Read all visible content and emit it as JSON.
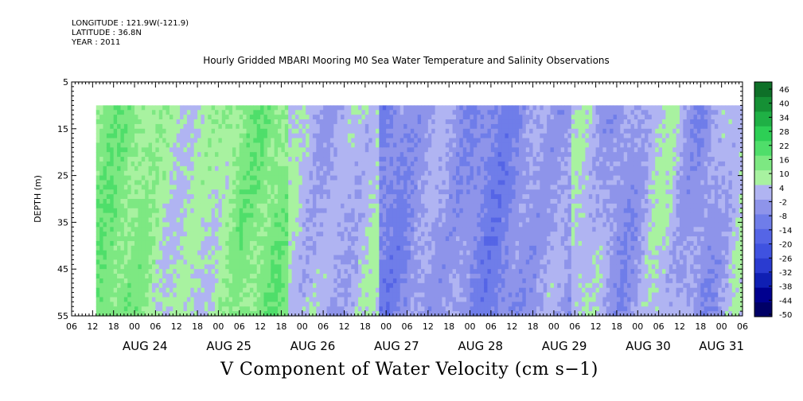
{
  "header": {
    "longitude": "LONGITUDE : 121.9W(-121.9)",
    "latitude": "LATITUDE : 36.8N",
    "year": "YEAR : 2011"
  },
  "title": "Hourly Gridded MBARI Mooring M0 Sea Water Temperature and Salinity Observations",
  "bottom_title": "V Component of Water Velocity (cm s−1)",
  "chart_data": {
    "type": "heatmap",
    "title": "Hourly Gridded MBARI Mooring M0 Sea Water Temperature and Salinity Observations",
    "ylabel": "DEPTH (m)",
    "xlabel": "",
    "ylim": [
      55,
      5
    ],
    "y_ticks": [
      "5",
      "15",
      "25",
      "35",
      "45",
      "55"
    ],
    "x_range_hours": [
      "AUG 23 06",
      "AUG 31 08"
    ],
    "x_hour_ticks": [
      "06",
      "12",
      "18",
      "00",
      "06",
      "12",
      "18",
      "00",
      "06",
      "12",
      "18",
      "00",
      "06",
      "12",
      "18",
      "00",
      "06",
      "12",
      "18",
      "00",
      "06",
      "12",
      "18",
      "00",
      "06",
      "12",
      "18",
      "00",
      "06",
      "12",
      "18",
      "00",
      "06"
    ],
    "x_day_labels": [
      "AUG 24",
      "AUG 25",
      "AUG 26",
      "AUG 27",
      "AUG 28",
      "AUG 29",
      "AUG 30",
      "AUG 31"
    ],
    "data_depth_range": [
      10,
      55
    ],
    "data_start": "AUG 23 13",
    "colorbar": {
      "levels": [
        -50,
        -44,
        -38,
        -32,
        -26,
        -20,
        -14,
        -8,
        -2,
        4,
        10,
        16,
        22,
        28,
        34,
        40,
        46
      ],
      "labels": [
        "46",
        "40",
        "34",
        "28",
        "22",
        "16",
        "10",
        "4",
        "-2",
        "-8",
        "-14",
        "-20",
        "-26",
        "-32",
        "-38",
        "-44",
        "-50"
      ]
    },
    "colors": {
      "positive_light": "#9ef59e",
      "positive_mid": "#3fe07a",
      "negative_light": "#b0b4f2",
      "negative_mid": "#8e94ea"
    },
    "description_bands": [
      {
        "start_day": 23.5,
        "end_day": 25.8,
        "sign": "positive",
        "value": 12
      },
      {
        "start_day": 25.8,
        "end_day": 27.0,
        "sign": "mixed",
        "value": 0
      },
      {
        "start_day": 27.0,
        "end_day": 29.0,
        "sign": "negative",
        "value": -6
      },
      {
        "start_day": 29.0,
        "end_day": 31.3,
        "sign": "mixed",
        "value": 0
      }
    ]
  }
}
